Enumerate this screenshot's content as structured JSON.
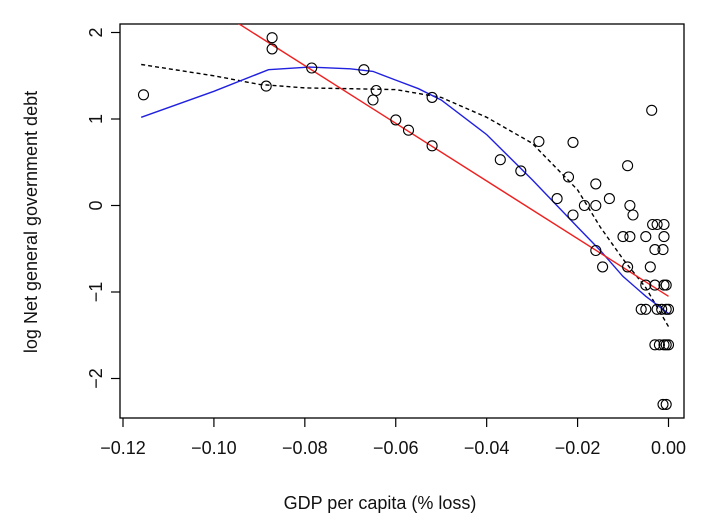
{
  "chart_data": {
    "type": "scatter",
    "title": "",
    "xlabel": "GDP per capita (% loss)",
    "ylabel": "log Net general government debt",
    "xlim": [
      -0.12,
      0.0
    ],
    "ylim": [
      -2.5,
      2.15
    ],
    "x_ticks": [
      -0.12,
      -0.1,
      -0.08,
      -0.06,
      -0.04,
      -0.02,
      0.0
    ],
    "x_tick_labels": [
      "−0.12",
      "−0.10",
      "−0.08",
      "−0.06",
      "−0.04",
      "−0.02",
      "0.00"
    ],
    "y_ticks": [
      -2,
      -1,
      0,
      1,
      2
    ],
    "y_tick_labels": [
      "−2",
      "−1",
      "0",
      "1",
      "2"
    ],
    "grid": false,
    "points": [
      [
        -0.1155,
        1.28
      ],
      [
        -0.0885,
        1.38
      ],
      [
        -0.0872,
        1.94
      ],
      [
        -0.0872,
        1.81
      ],
      [
        -0.0785,
        1.59
      ],
      [
        -0.067,
        1.57
      ],
      [
        -0.065,
        1.22
      ],
      [
        -0.0643,
        1.33
      ],
      [
        -0.052,
        1.25
      ],
      [
        -0.06,
        0.99
      ],
      [
        -0.0572,
        0.87
      ],
      [
        -0.052,
        0.69
      ],
      [
        -0.037,
        0.53
      ],
      [
        -0.0325,
        0.4
      ],
      [
        -0.0285,
        0.74
      ],
      [
        -0.021,
        0.73
      ],
      [
        -0.0245,
        0.08
      ],
      [
        -0.022,
        0.33
      ],
      [
        -0.021,
        -0.11
      ],
      [
        -0.0185,
        0.0
      ],
      [
        -0.016,
        0.25
      ],
      [
        -0.016,
        0.0
      ],
      [
        -0.016,
        -0.52
      ],
      [
        -0.0145,
        -0.71
      ],
      [
        -0.013,
        0.08
      ],
      [
        -0.009,
        0.46
      ],
      [
        -0.0085,
        0.0
      ],
      [
        -0.0078,
        -0.11
      ],
      [
        -0.01,
        -0.36
      ],
      [
        -0.0085,
        -0.36
      ],
      [
        -0.009,
        -0.71
      ],
      [
        -0.0037,
        1.1
      ],
      [
        -0.0035,
        -0.22
      ],
      [
        -0.0025,
        -0.22
      ],
      [
        -0.001,
        -0.22
      ],
      [
        -0.001,
        -0.36
      ],
      [
        -0.005,
        -0.36
      ],
      [
        -0.003,
        -0.51
      ],
      [
        -0.0012,
        -0.51
      ],
      [
        -0.004,
        -0.71
      ],
      [
        -0.003,
        -0.92
      ],
      [
        -0.005,
        -0.92
      ],
      [
        -0.001,
        -0.92
      ],
      [
        -0.0005,
        -0.92
      ],
      [
        -0.006,
        -1.2
      ],
      [
        -0.005,
        -1.2
      ],
      [
        -0.0025,
        -1.2
      ],
      [
        -0.0015,
        -1.2
      ],
      [
        -0.0005,
        -1.2
      ],
      [
        0.0,
        -1.2
      ],
      [
        -0.003,
        -1.61
      ],
      [
        -0.002,
        -1.61
      ],
      [
        -0.001,
        -1.61
      ],
      [
        -0.0005,
        -1.61
      ],
      [
        0.0,
        -1.61
      ],
      [
        -0.0012,
        -2.3
      ],
      [
        -0.0005,
        -2.3
      ]
    ],
    "series": [
      {
        "style": "dashed",
        "color": "#000000",
        "x": [
          -0.116,
          -0.1,
          -0.09,
          -0.08,
          -0.07,
          -0.06,
          -0.05,
          -0.04,
          -0.03,
          -0.02,
          -0.015,
          -0.01,
          -0.005,
          0.0
        ],
        "y": [
          1.63,
          1.5,
          1.4,
          1.36,
          1.35,
          1.34,
          1.25,
          1.02,
          0.72,
          0.18,
          -0.25,
          -0.62,
          -0.95,
          -1.4
        ]
      },
      {
        "style": "solid",
        "color": "#2020e0",
        "x": [
          -0.116,
          -0.1,
          -0.088,
          -0.079,
          -0.07,
          -0.065,
          -0.06,
          -0.055,
          -0.05,
          -0.04,
          -0.03,
          -0.02,
          -0.015,
          -0.01,
          -0.005,
          0.0
        ],
        "y": [
          1.02,
          1.32,
          1.57,
          1.6,
          1.58,
          1.55,
          1.45,
          1.35,
          1.22,
          0.82,
          0.3,
          -0.25,
          -0.52,
          -0.82,
          -1.05,
          -1.25
        ]
      },
      {
        "style": "solid",
        "color": "#ee2020",
        "x": [
          -0.096,
          0.0
        ],
        "y": [
          2.15,
          -1.05
        ]
      }
    ]
  }
}
